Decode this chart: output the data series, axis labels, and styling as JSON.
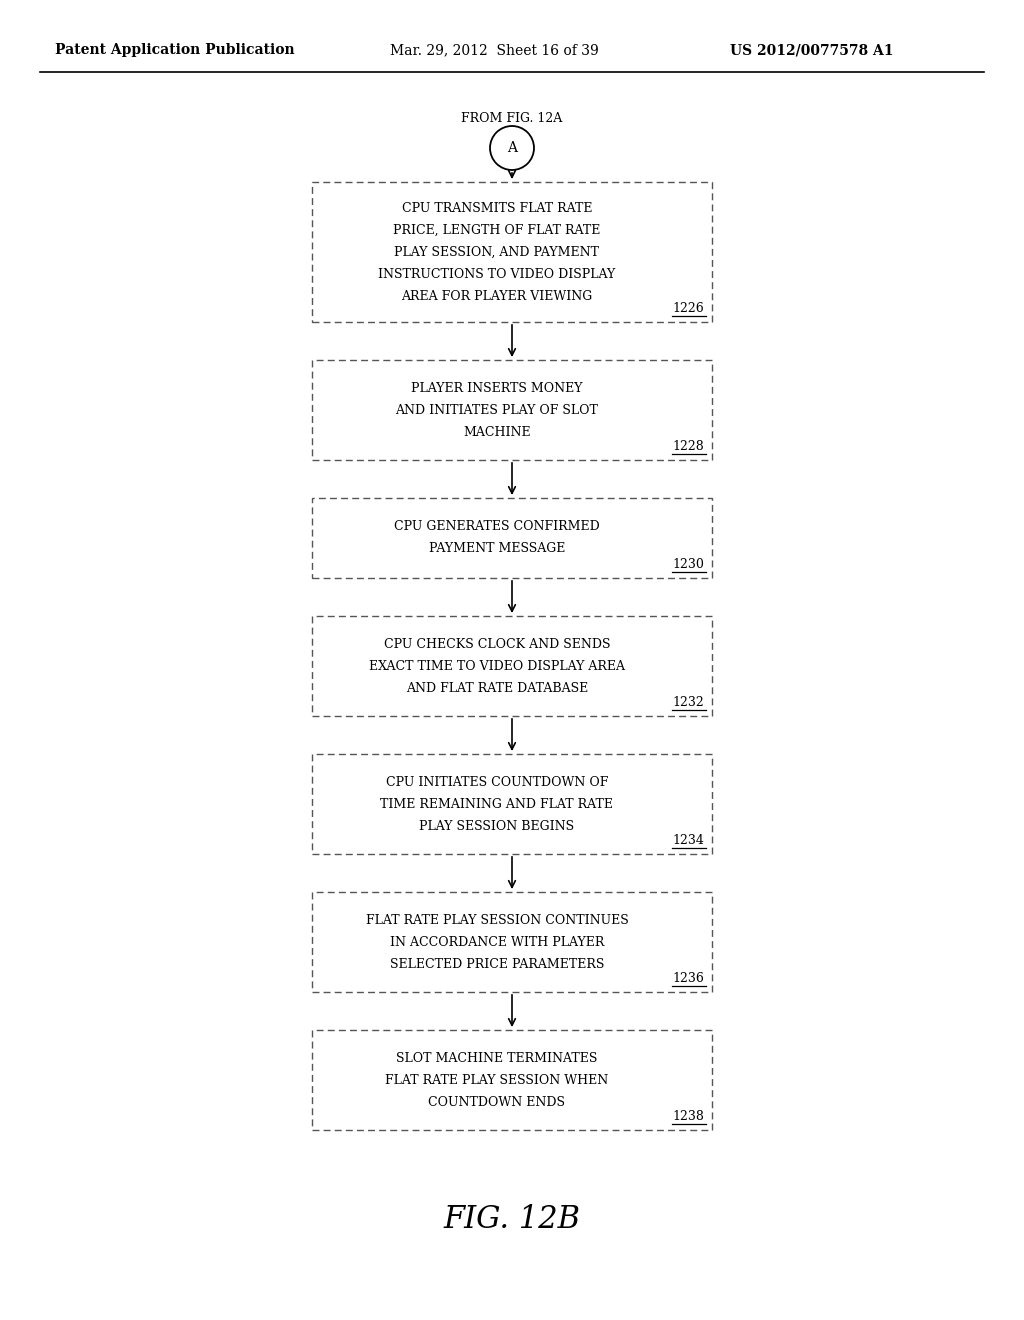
{
  "title_left": "Patent Application Publication",
  "title_mid": "Mar. 29, 2012  Sheet 16 of 39",
  "title_right": "US 2012/0077578 A1",
  "from_label": "FROM FIG. 12A",
  "connector_label": "A",
  "fig_label": "FIG. 12B",
  "background_color": "#ffffff",
  "boxes": [
    {
      "lines": [
        "CPU TRANSMITS FLAT RATE",
        "PRICE, LENGTH OF FLAT RATE",
        "PLAY SESSION, AND PAYMENT",
        "INSTRUCTIONS TO VIDEO DISPLAY",
        "AREA FOR PLAYER VIEWING"
      ],
      "label": "1226"
    },
    {
      "lines": [
        "PLAYER INSERTS MONEY",
        "AND INITIATES PLAY OF SLOT",
        "MACHINE"
      ],
      "label": "1228"
    },
    {
      "lines": [
        "CPU GENERATES CONFIRMED",
        "PAYMENT MESSAGE"
      ],
      "label": "1230"
    },
    {
      "lines": [
        "CPU CHECKS CLOCK AND SENDS",
        "EXACT TIME TO VIDEO DISPLAY AREA",
        "AND FLAT RATE DATABASE"
      ],
      "label": "1232"
    },
    {
      "lines": [
        "CPU INITIATES COUNTDOWN OF",
        "TIME REMAINING AND FLAT RATE",
        "PLAY SESSION BEGINS"
      ],
      "label": "1234"
    },
    {
      "lines": [
        "FLAT RATE PLAY SESSION CONTINUES",
        "IN ACCORDANCE WITH PLAYER",
        "SELECTED PRICE PARAMETERS"
      ],
      "label": "1236"
    },
    {
      "lines": [
        "SLOT MACHINE TERMINATES",
        "FLAT RATE PLAY SESSION WHEN",
        "COUNTDOWN ENDS"
      ],
      "label": "1238"
    }
  ]
}
